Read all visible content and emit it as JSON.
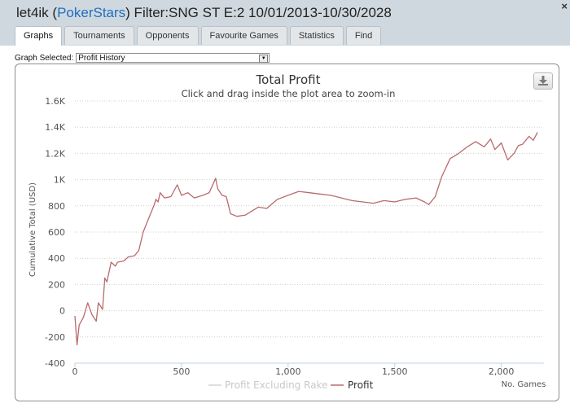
{
  "window": {
    "title_prefix": "let4ik (",
    "site": "PokerStars",
    "title_suffix": ") Filter:SNG ST E:2 10/01/2013-10/30/2028",
    "close": "×"
  },
  "tabs": [
    {
      "label": "Graphs",
      "active": true
    },
    {
      "label": "Tournaments",
      "active": false
    },
    {
      "label": "Opponents",
      "active": false
    },
    {
      "label": "Favourite Games",
      "active": false
    },
    {
      "label": "Statistics",
      "active": false
    },
    {
      "label": "Find",
      "active": false
    }
  ],
  "graph_select": {
    "label": "Graph Selected:",
    "value": "Profit History"
  },
  "chart_data": {
    "type": "line",
    "title": "Total Profit",
    "subtitle": "Click and drag inside the plot area to zoom-in",
    "xlabel": "No. Games",
    "ylabel": "Cumulative Total (USD)",
    "xlim": [
      0,
      2200
    ],
    "ylim": [
      -400,
      1600
    ],
    "x_ticks": [
      0,
      500,
      1000,
      1500,
      2000
    ],
    "x_tick_labels": [
      "0",
      "500",
      "1,000",
      "1,500",
      "2,000"
    ],
    "y_ticks": [
      -400,
      -200,
      0,
      200,
      400,
      600,
      800,
      1000,
      1200,
      1400,
      1600
    ],
    "y_tick_labels": [
      "-400",
      "-200",
      "0",
      "200",
      "400",
      "600",
      "800",
      "1K",
      "1.2K",
      "1.4K",
      "1.6K"
    ],
    "grid": true,
    "legend_position": "bottom-center",
    "series": [
      {
        "name": "Profit Excluding Rake",
        "color": "#d4d4d4",
        "visible": false,
        "x": [],
        "y": []
      },
      {
        "name": "Profit",
        "color": "#b96a6e",
        "visible": true,
        "x": [
          0,
          10,
          20,
          40,
          60,
          80,
          100,
          110,
          130,
          140,
          150,
          170,
          190,
          200,
          230,
          250,
          280,
          300,
          320,
          350,
          370,
          380,
          390,
          400,
          420,
          450,
          480,
          500,
          530,
          560,
          600,
          630,
          660,
          670,
          690,
          710,
          730,
          760,
          800,
          830,
          860,
          900,
          950,
          1000,
          1050,
          1100,
          1150,
          1200,
          1250,
          1300,
          1350,
          1400,
          1450,
          1500,
          1550,
          1600,
          1640,
          1660,
          1690,
          1720,
          1760,
          1800,
          1840,
          1880,
          1920,
          1950,
          1970,
          2000,
          2030,
          2060,
          2080,
          2100,
          2130,
          2150,
          2170
        ],
        "y": [
          -40,
          -260,
          -110,
          -50,
          60,
          -30,
          -80,
          60,
          10,
          250,
          220,
          370,
          340,
          370,
          380,
          410,
          420,
          460,
          600,
          720,
          800,
          850,
          830,
          900,
          860,
          870,
          960,
          880,
          900,
          860,
          880,
          900,
          1010,
          930,
          880,
          870,
          740,
          720,
          730,
          760,
          790,
          780,
          850,
          880,
          910,
          900,
          890,
          880,
          860,
          840,
          830,
          820,
          840,
          830,
          850,
          860,
          830,
          810,
          870,
          1020,
          1160,
          1200,
          1250,
          1290,
          1250,
          1310,
          1230,
          1280,
          1150,
          1200,
          1260,
          1270,
          1330,
          1300,
          1360
        ]
      }
    ]
  }
}
